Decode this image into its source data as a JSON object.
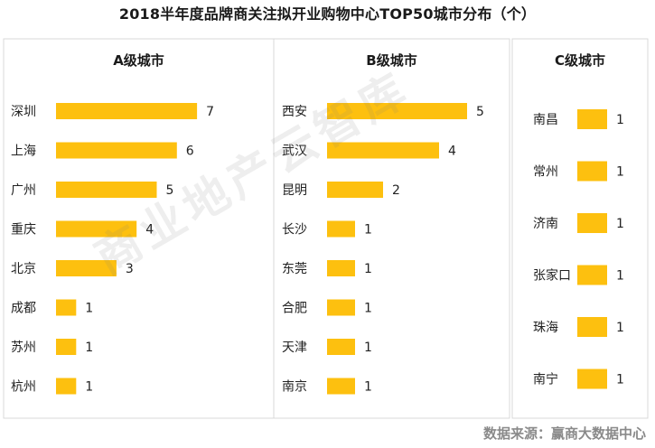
{
  "title": "2018半年度品牌商关注拟开业购物中心TOP50城市分布（个）",
  "source": "数据来源：赢商大数据中心",
  "watermark": "商业地产云智库",
  "colors": {
    "bar": "#FDC00F",
    "panel_border": "#D9D9D9",
    "text": "#222222"
  },
  "chart_data": [
    {
      "type": "bar",
      "title": "A级城市",
      "categories": [
        "深圳",
        "上海",
        "广州",
        "重庆",
        "北京",
        "成都",
        "苏州",
        "杭州"
      ],
      "values": [
        7,
        6,
        5,
        4,
        3,
        1,
        1,
        1
      ],
      "xlim": [
        0,
        7
      ]
    },
    {
      "type": "bar",
      "title": "B级城市",
      "categories": [
        "西安",
        "武汉",
        "昆明",
        "长沙",
        "东莞",
        "合肥",
        "天津",
        "南京"
      ],
      "values": [
        5,
        4,
        2,
        1,
        1,
        1,
        1,
        1
      ],
      "xlim": [
        0,
        5
      ]
    },
    {
      "type": "bar",
      "title": "C级城市",
      "categories": [
        "南昌",
        "常州",
        "济南",
        "张家口",
        "珠海",
        "南宁"
      ],
      "values": [
        1,
        1,
        1,
        1,
        1,
        1
      ],
      "xlim": [
        0,
        1
      ]
    }
  ]
}
